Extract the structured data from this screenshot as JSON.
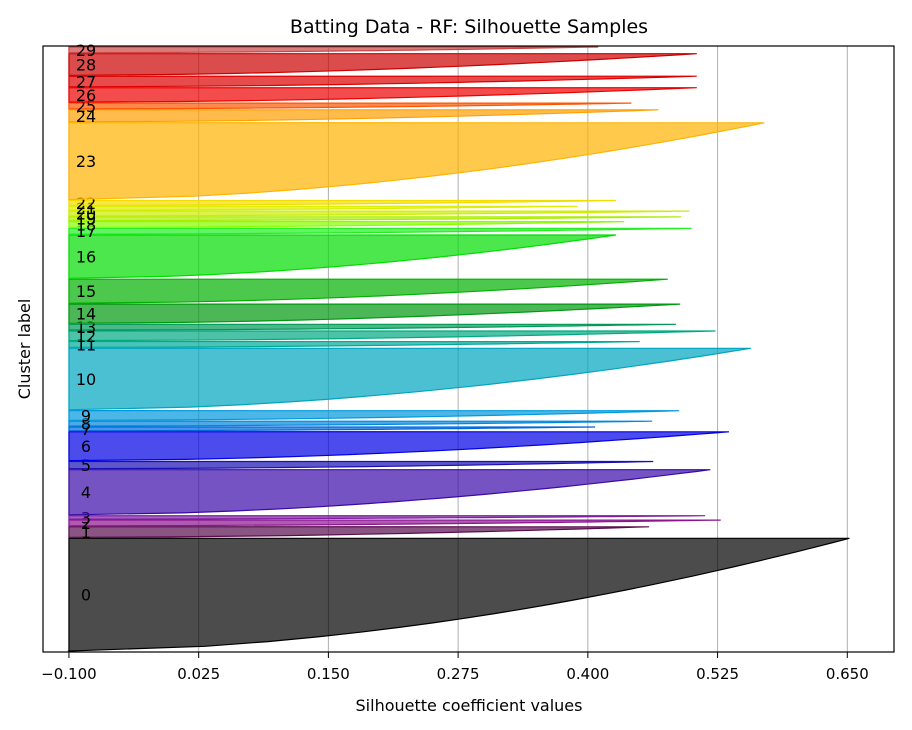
{
  "chart_data": {
    "type": "area",
    "title": "Batting Data - RF: Silhouette Samples",
    "xlabel": "Silhouette coefficient values",
    "ylabel": "Cluster label",
    "xlim": [
      -0.125,
      0.695
    ],
    "xticks": [
      -0.1,
      0.025,
      0.15,
      0.275,
      0.4,
      0.525,
      0.65
    ],
    "xtick_labels": [
      "−0.100",
      "0.025",
      "0.150",
      "0.275",
      "0.400",
      "0.525",
      "0.650"
    ],
    "grid": "vertical",
    "clusters": [
      {
        "label": "0",
        "size": 235,
        "max": 0.652,
        "min": -0.1,
        "color": "#000000"
      },
      {
        "label": "1",
        "size": 22,
        "max": 0.459,
        "min": -0.098,
        "color": "#5a0d4e"
      },
      {
        "label": "2",
        "size": 12,
        "max": 0.528,
        "min": -0.098,
        "color": "#8b1590"
      },
      {
        "label": "3",
        "size": 7,
        "max": 0.513,
        "min": -0.098,
        "color": "#7d1fa0"
      },
      {
        "label": "4",
        "size": 94,
        "max": 0.518,
        "min": -0.098,
        "color": "#3a0aa8"
      },
      {
        "label": "5",
        "size": 15,
        "max": 0.463,
        "min": -0.098,
        "color": "#1a0fb4"
      },
      {
        "label": "6",
        "size": 60,
        "max": 0.536,
        "min": -0.098,
        "color": "#0000e6"
      },
      {
        "label": "7",
        "size": 8,
        "max": 0.407,
        "min": -0.098,
        "color": "#0066dd"
      },
      {
        "label": "8",
        "size": 10,
        "max": 0.462,
        "min": -0.098,
        "color": "#0088dd"
      },
      {
        "label": "9",
        "size": 20,
        "max": 0.488,
        "min": -0.098,
        "color": "#0099dd"
      },
      {
        "label": "10",
        "size": 128,
        "max": 0.557,
        "min": -0.098,
        "color": "#00a5c0"
      },
      {
        "label": "11",
        "size": 12,
        "max": 0.45,
        "min": -0.098,
        "color": "#00aa99"
      },
      {
        "label": "12",
        "size": 20,
        "max": 0.523,
        "min": -0.098,
        "color": "#00aa80"
      },
      {
        "label": "13",
        "size": 12,
        "max": 0.485,
        "min": -0.098,
        "color": "#009955"
      },
      {
        "label": "14",
        "size": 40,
        "max": 0.489,
        "min": -0.098,
        "color": "#009910"
      },
      {
        "label": "15",
        "size": 50,
        "max": 0.477,
        "min": -0.098,
        "color": "#00b000"
      },
      {
        "label": "16",
        "size": 90,
        "max": 0.427,
        "min": -0.098,
        "color": "#00dd00"
      },
      {
        "label": "17",
        "size": 12,
        "max": 0.5,
        "min": -0.098,
        "color": "#22ee22"
      },
      {
        "label": "18",
        "size": 12,
        "max": 0.435,
        "min": -0.098,
        "color": "#88ff00"
      },
      {
        "label": "19",
        "size": 8,
        "max": 0.49,
        "min": -0.098,
        "color": "#aaee00"
      },
      {
        "label": "20",
        "size": 10,
        "max": 0.498,
        "min": -0.098,
        "color": "#ccee00"
      },
      {
        "label": "21",
        "size": 8,
        "max": 0.39,
        "min": -0.098,
        "color": "#ddee00"
      },
      {
        "label": "22",
        "size": 10,
        "max": 0.427,
        "min": -0.098,
        "color": "#f3dd00"
      },
      {
        "label": "23",
        "size": 160,
        "max": 0.57,
        "min": -0.098,
        "color": "#ffb400"
      },
      {
        "label": "24",
        "size": 25,
        "max": 0.468,
        "min": -0.098,
        "color": "#ffa000"
      },
      {
        "label": "25",
        "size": 12,
        "max": 0.442,
        "min": -0.098,
        "color": "#ff5500"
      },
      {
        "label": "26",
        "size": 30,
        "max": 0.505,
        "min": -0.098,
        "color": "#ee0000"
      },
      {
        "label": "27",
        "size": 22,
        "max": 0.505,
        "min": -0.098,
        "color": "#dd0000"
      },
      {
        "label": "28",
        "size": 45,
        "max": 0.505,
        "min": -0.098,
        "color": "#cc0000"
      },
      {
        "label": "29",
        "size": 12,
        "max": 0.41,
        "min": -0.098,
        "color": "#cc4444"
      }
    ],
    "avg_line": null
  }
}
